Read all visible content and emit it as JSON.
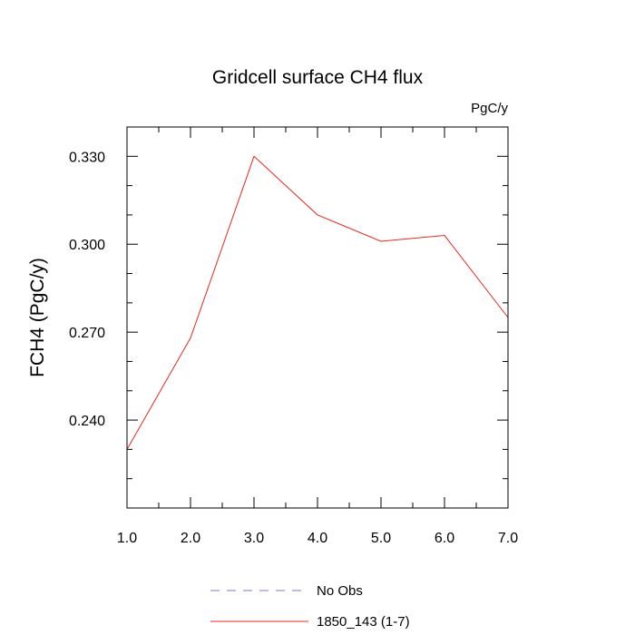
{
  "chart_data": {
    "type": "line",
    "title": "Gridcell surface CH4 flux",
    "units": "PgC/y",
    "xlabel": "",
    "ylabel": "FCH4  (PgC/y)",
    "xlim": [
      1.0,
      7.0
    ],
    "ylim": [
      0.21,
      0.34
    ],
    "x_ticks": [
      "1.0",
      "2.0",
      "3.0",
      "4.0",
      "5.0",
      "6.0",
      "7.0"
    ],
    "y_ticks": [
      "0.240",
      "0.270",
      "0.300",
      "0.330"
    ],
    "grid": false,
    "legend_position": "bottom",
    "series": [
      {
        "name": "1850_143 (1-7)",
        "color": "#e8281e",
        "style": "solid",
        "x": [
          1.0,
          2.0,
          3.0,
          4.0,
          5.0,
          6.0,
          7.0
        ],
        "values": [
          0.23,
          0.268,
          0.33,
          0.31,
          0.301,
          0.303,
          0.275
        ]
      }
    ],
    "legend": [
      {
        "label": "No Obs",
        "color": "#7b7bd6",
        "style": "dashed"
      },
      {
        "label": "1850_143 (1-7)",
        "color": "#e8281e",
        "style": "solid"
      }
    ]
  }
}
